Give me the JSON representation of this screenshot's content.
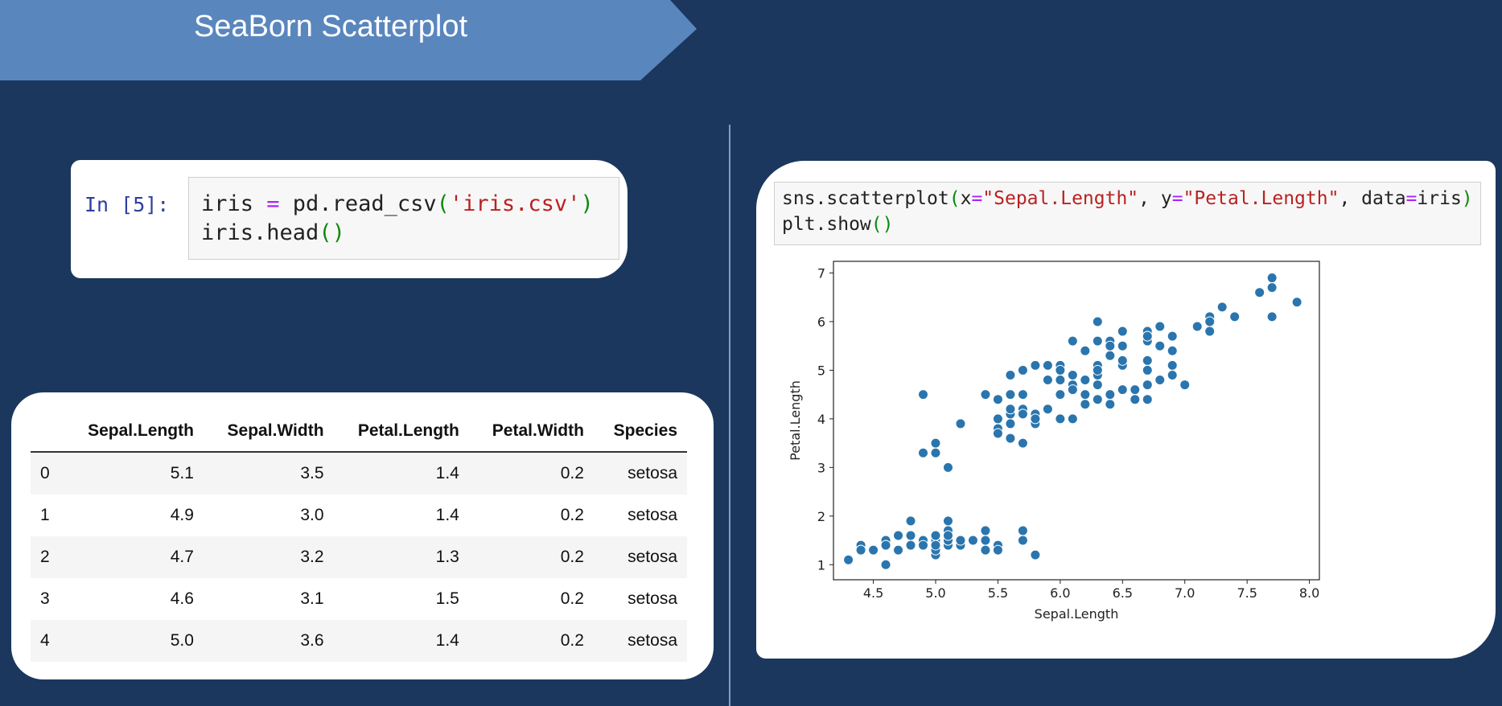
{
  "header": {
    "title": "SeaBorn Scatterplot"
  },
  "cell_1": {
    "prompt": "In [5]:",
    "lines": [
      "iris = pd.read_csv('iris.csv')",
      "iris.head()"
    ]
  },
  "table": {
    "columns": [
      "Sepal.Length",
      "Sepal.Width",
      "Petal.Length",
      "Petal.Width",
      "Species"
    ],
    "rows": [
      [
        "0",
        "5.1",
        "3.5",
        "1.4",
        "0.2",
        "setosa"
      ],
      [
        "1",
        "4.9",
        "3.0",
        "1.4",
        "0.2",
        "setosa"
      ],
      [
        "2",
        "4.7",
        "3.2",
        "1.3",
        "0.2",
        "setosa"
      ],
      [
        "3",
        "4.6",
        "3.1",
        "1.5",
        "0.2",
        "setosa"
      ],
      [
        "4",
        "5.0",
        "3.6",
        "1.4",
        "0.2",
        "setosa"
      ]
    ]
  },
  "cell_2": {
    "lines": [
      "sns.scatterplot(x=\"Sepal.Length\", y=\"Petal.Length\", data=iris)",
      "plt.show()"
    ]
  },
  "chart_data": {
    "type": "scatter",
    "x_label": "Sepal.Length",
    "y_label": "Petal.Length",
    "color": "#2a75ad",
    "x": [
      5.1,
      4.9,
      4.7,
      4.6,
      5.0,
      5.4,
      4.6,
      5.0,
      4.4,
      4.9,
      5.4,
      4.8,
      4.8,
      4.3,
      5.8,
      5.7,
      5.4,
      5.1,
      5.7,
      5.1,
      5.4,
      5.1,
      4.6,
      5.1,
      4.8,
      5.0,
      5.0,
      5.2,
      5.2,
      4.7,
      4.8,
      5.4,
      5.2,
      5.5,
      4.9,
      5.0,
      5.5,
      4.9,
      4.4,
      5.1,
      5.0,
      4.5,
      4.4,
      5.0,
      5.1,
      4.8,
      5.1,
      4.6,
      5.3,
      5.0,
      7.0,
      6.4,
      6.9,
      5.5,
      6.5,
      5.7,
      6.3,
      4.9,
      6.6,
      5.2,
      5.0,
      5.9,
      6.0,
      6.1,
      5.6,
      6.7,
      5.6,
      5.8,
      6.2,
      5.6,
      5.9,
      6.1,
      6.3,
      6.1,
      6.4,
      6.6,
      6.8,
      6.7,
      6.0,
      5.7,
      5.5,
      5.5,
      5.8,
      6.0,
      5.4,
      6.0,
      6.7,
      6.3,
      5.6,
      5.5,
      5.5,
      6.1,
      5.8,
      5.0,
      5.6,
      5.7,
      5.7,
      6.2,
      5.1,
      5.7,
      6.3,
      5.8,
      7.1,
      6.3,
      6.5,
      7.6,
      4.9,
      7.3,
      6.7,
      7.2,
      6.5,
      6.4,
      6.8,
      5.7,
      5.8,
      6.4,
      6.5,
      7.7,
      7.7,
      6.0,
      6.9,
      5.6,
      7.7,
      6.3,
      6.7,
      7.2,
      6.2,
      6.1,
      6.4,
      7.2,
      7.4,
      7.9,
      6.4,
      6.3,
      6.1,
      7.7,
      6.3,
      6.4,
      6.0,
      6.9,
      6.7,
      6.9,
      5.8,
      6.8,
      6.7,
      6.7,
      6.3,
      6.5,
      6.2,
      5.9
    ],
    "values": [
      1.4,
      1.4,
      1.3,
      1.5,
      1.4,
      1.7,
      1.4,
      1.5,
      1.4,
      1.5,
      1.5,
      1.6,
      1.4,
      1.1,
      1.2,
      1.5,
      1.3,
      1.4,
      1.7,
      1.5,
      1.7,
      1.5,
      1.0,
      1.7,
      1.9,
      1.6,
      1.6,
      1.5,
      1.4,
      1.6,
      1.6,
      1.5,
      1.5,
      1.4,
      1.5,
      1.2,
      1.3,
      1.4,
      1.3,
      1.5,
      1.3,
      1.3,
      1.3,
      1.6,
      1.9,
      1.4,
      1.6,
      1.4,
      1.5,
      1.4,
      4.7,
      4.5,
      4.9,
      4.0,
      4.6,
      4.5,
      4.7,
      3.3,
      4.6,
      3.9,
      3.5,
      4.2,
      4.0,
      4.7,
      3.6,
      4.4,
      4.5,
      4.1,
      4.5,
      3.9,
      4.8,
      4.0,
      4.9,
      4.7,
      4.3,
      4.4,
      4.8,
      5.0,
      4.5,
      3.5,
      3.8,
      3.7,
      3.9,
      5.1,
      4.5,
      4.5,
      4.7,
      4.4,
      4.1,
      4.0,
      4.4,
      4.6,
      4.0,
      3.3,
      4.2,
      4.2,
      4.2,
      4.3,
      3.0,
      4.1,
      6.0,
      5.1,
      5.9,
      5.6,
      5.8,
      6.6,
      4.5,
      6.3,
      5.8,
      6.1,
      5.1,
      5.3,
      5.5,
      5.0,
      5.1,
      5.3,
      5.5,
      6.7,
      6.9,
      5.0,
      5.7,
      4.9,
      6.7,
      4.9,
      5.7,
      6.0,
      4.8,
      4.9,
      5.6,
      5.8,
      6.1,
      6.4,
      5.6,
      5.1,
      5.6,
      6.1,
      5.6,
      5.5,
      4.8,
      5.4,
      5.6,
      5.1,
      5.1,
      5.9,
      5.7,
      5.2,
      5.0,
      5.2,
      5.4,
      5.1
    ],
    "xlim": [
      4.18,
      8.08
    ],
    "xticks": [
      4.5,
      {
        "value": 5.0,
        "label": "5.0"
      },
      5.5,
      {
        "value": 6.0,
        "label": "6.0"
      },
      6.5,
      {
        "value": 7.0,
        "label": "7.0"
      },
      7.5,
      {
        "value": 8.0,
        "label": "8.0"
      }
    ],
    "ylim": [
      0.69,
      7.24
    ],
    "yticks": [
      1,
      2,
      3,
      4,
      5,
      6,
      7
    ]
  }
}
